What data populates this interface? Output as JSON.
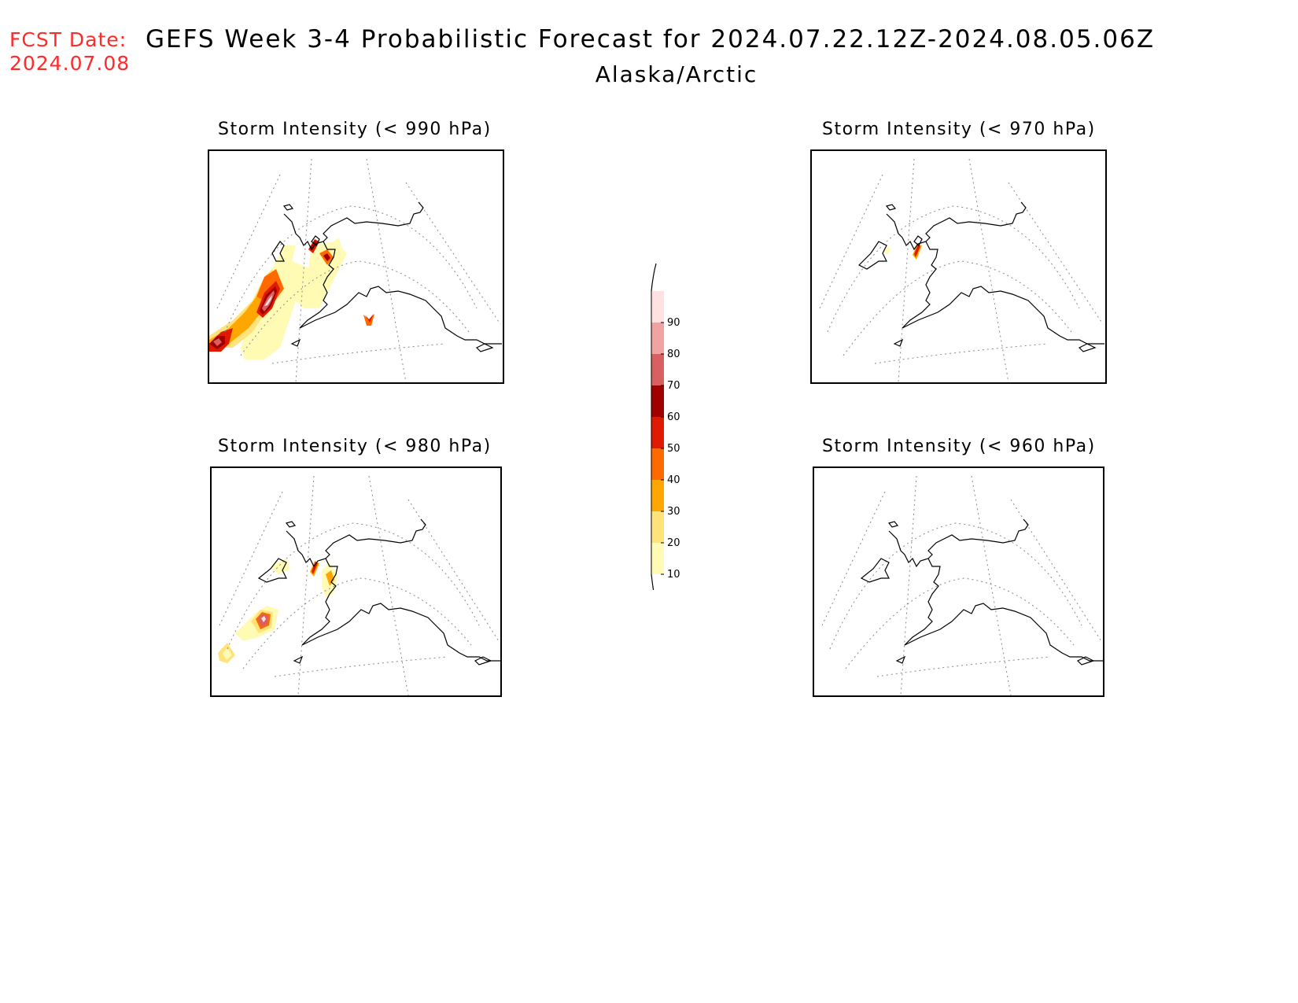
{
  "header": {
    "fcst_label": "FCST Date:",
    "fcst_date": "2024.07.08",
    "title": "GEFS Week 3-4 Probabilistic Forecast for 2024.07.22.12Z-2024.08.05.06Z",
    "subtitle": "Alaska/Arctic"
  },
  "panels": [
    {
      "id": "p990",
      "title": "Storm Intensity (< 990 hPa)"
    },
    {
      "id": "p970",
      "title": "Storm Intensity (< 970 hPa)"
    },
    {
      "id": "p980",
      "title": "Storm Intensity (< 980 hPa)"
    },
    {
      "id": "p960",
      "title": "Storm Intensity (< 960 hPa)"
    }
  ],
  "colorbar": {
    "levels": [
      "10",
      "20",
      "30",
      "40",
      "50",
      "60",
      "70",
      "80",
      "90"
    ],
    "colors": [
      "#fffab4",
      "#ffe27a",
      "#ffa600",
      "#ff6a00",
      "#e01a00",
      "#a00000",
      "#d96060",
      "#f0a3a3",
      "#ffe1e1"
    ]
  },
  "colors": {
    "fcst_text": "#ff2a2a"
  }
}
